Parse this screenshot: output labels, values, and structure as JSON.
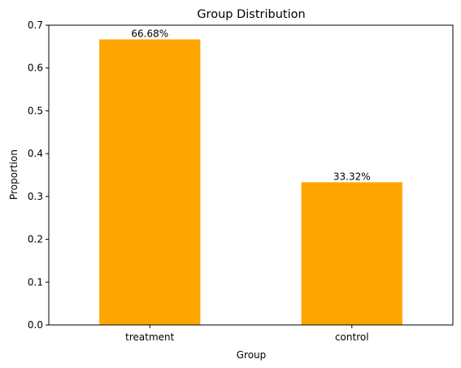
{
  "chart_data": {
    "type": "bar",
    "title": "Group Distribution",
    "xlabel": "Group",
    "ylabel": "Proportion",
    "categories": [
      "treatment",
      "control"
    ],
    "values": [
      0.6668,
      0.3332
    ],
    "data_labels": [
      "66.68%",
      "33.32%"
    ],
    "ylim": [
      0,
      0.7
    ],
    "yticks": [
      0.0,
      0.1,
      0.2,
      0.3,
      0.4,
      0.5,
      0.6,
      0.7
    ],
    "ytick_labels": [
      "0.0",
      "0.1",
      "0.2",
      "0.3",
      "0.4",
      "0.5",
      "0.6",
      "0.7"
    ],
    "bar_color": "#ffa500",
    "grid": false,
    "legend": "none"
  }
}
